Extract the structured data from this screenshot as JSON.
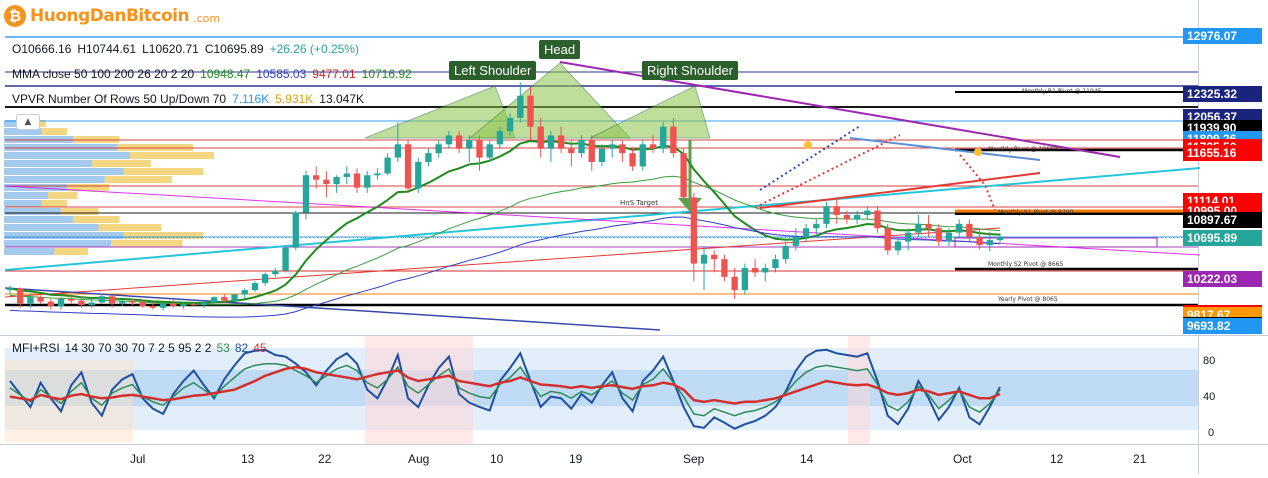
{
  "logo": {
    "text": "HuongDanBitcoin",
    "domain": ".com",
    "coin_symbol": "₿"
  },
  "ohlc": {
    "o": "O10666.16",
    "h": "H10744.61",
    "l": "L10620.71",
    "c": "C10695.89",
    "chg": "+26.26 (+0.25%)",
    "chg_color": "#26a69a"
  },
  "mma": {
    "label": "MMA close 50 100 200 26 20 2 20",
    "v1": "10948.47",
    "v2": "10585.03",
    "v3": "9477.01",
    "v4": "10716.92",
    "colors": [
      "#1f8b1f",
      "#2f3fc5",
      "#d01f1f",
      "#1f8b1f"
    ]
  },
  "vpvr": {
    "label": "VPVR Number Of Rows 50 Up/Down 70",
    "v1": "7.116K",
    "v2": "5.931K",
    "v3": "13.047K",
    "colors": [
      "#2196f3",
      "#f2b90f",
      "#131722"
    ]
  },
  "annotations": {
    "head": "Head",
    "left_shoulder": "Left Shoulder",
    "right_shoulder": "Right Shoulder",
    "hns_target": "HnS Target",
    "monthly_r1": "Monthly R1 Pivot @ 11945",
    "monthly_pivot": "Monthly Pivot @ 10660",
    "monthly_s1": "Monthly S1 Pivot @ 9700",
    "monthly_s2": "Monthly S2 Pivot @ 8665",
    "yearly_pivot": "Yearly Pivot @ 8065"
  },
  "price_labels": [
    {
      "text": "12976.07",
      "bg": "#2196f3",
      "price": 12976.07
    },
    {
      "text": "12325.32",
      "bg": "#1a237e",
      "price": 12325.32
    },
    {
      "text": "12056.37",
      "bg": "#1a237e",
      "price": 12056.37
    },
    {
      "text": "11939.90",
      "bg": "#000000",
      "price": 11939.9
    },
    {
      "text": "11809.26",
      "bg": "#2196f3",
      "price": 11809.26
    },
    {
      "text": "11725.50",
      "bg": "#ff0000",
      "price": 11725.5
    },
    {
      "text": "11655.16",
      "bg": "#ff0000",
      "price": 11655.16
    },
    {
      "text": "11114.01",
      "bg": "#ff0000",
      "price": 11114.01
    },
    {
      "text": "10995.00",
      "bg": "#ff0000",
      "price": 10995.0
    },
    {
      "text": "10897.67",
      "bg": "#000000",
      "price": 10897.67
    },
    {
      "text": "10695.89",
      "bg": "#26a69a",
      "price": 10695.89
    },
    {
      "text": "10222.03",
      "bg": "#9c27b0",
      "price": 10222.03
    },
    {
      "text": "9836.10",
      "bg": "#ff0000",
      "price": 9836.1
    },
    {
      "text": "9817.67",
      "bg": "#ff9800",
      "price": 9817.67
    },
    {
      "text": "9700.47",
      "bg": "#000000",
      "price": 9700.47
    },
    {
      "text": "9693.82",
      "bg": "#2196f3",
      "price": 9693.82
    }
  ],
  "indicator": {
    "label": "MFI+RSI",
    "params": "14 30 70 30 70 7 2 5 95 2 2",
    "v1": "53",
    "v2": "82",
    "v3": "45",
    "colors": [
      "#2e8b57",
      "#1f4fa0",
      "#d32f2f"
    ]
  },
  "rsi_ticks": [
    "80",
    "40",
    "0"
  ],
  "x_axis": [
    "Jul",
    "13",
    "22",
    "Aug",
    "10",
    "19",
    "Sep",
    "14",
    "Oct",
    "12",
    "21"
  ],
  "chart_data": {
    "type": "candlestick",
    "symbol_ohlc_last": {
      "open": 10666.16,
      "high": 10744.61,
      "low": 10620.71,
      "close": 10695.89
    },
    "y_range_approx": [
      9300,
      13050
    ],
    "x_range": [
      "2020-06-27",
      "2020-10-26"
    ],
    "candles_daily_approx": [
      [
        10100,
        10150,
        10050,
        10120
      ],
      [
        10120,
        10130,
        9900,
        9950
      ],
      [
        9950,
        10050,
        9900,
        10020
      ],
      [
        10020,
        10040,
        9950,
        9970
      ],
      [
        9970,
        10000,
        9880,
        9920
      ],
      [
        9920,
        10020,
        9880,
        10000
      ],
      [
        10000,
        10050,
        9950,
        9980
      ],
      [
        9980,
        10020,
        9900,
        9930
      ],
      [
        9930,
        10000,
        9900,
        9960
      ],
      [
        9960,
        10050,
        9950,
        10030
      ],
      [
        10030,
        10040,
        9900,
        9950
      ],
      [
        9950,
        9990,
        9920,
        9970
      ],
      [
        9970,
        10000,
        9930,
        9960
      ],
      [
        9960,
        9990,
        9900,
        9920
      ],
      [
        9920,
        9950,
        9880,
        9900
      ],
      [
        9900,
        9960,
        9870,
        9950
      ],
      [
        9950,
        9990,
        9900,
        9920
      ],
      [
        9920,
        9960,
        9890,
        9940
      ],
      [
        9940,
        9970,
        9910,
        9930
      ],
      [
        9930,
        9980,
        9900,
        9960
      ],
      [
        9960,
        10030,
        9950,
        10020
      ],
      [
        10020,
        10050,
        9960,
        9980
      ],
      [
        9980,
        10060,
        9970,
        10050
      ],
      [
        10050,
        10120,
        10000,
        10100
      ],
      [
        10100,
        10200,
        10080,
        10180
      ],
      [
        10180,
        10300,
        10150,
        10280
      ],
      [
        10280,
        10350,
        10250,
        10320
      ],
      [
        10320,
        10600,
        10300,
        10580
      ],
      [
        10580,
        11000,
        10550,
        10980
      ],
      [
        10980,
        11450,
        10900,
        11400
      ],
      [
        11400,
        11500,
        11250,
        11350
      ],
      [
        11350,
        11450,
        11150,
        11300
      ],
      [
        11300,
        11400,
        11200,
        11380
      ],
      [
        11380,
        11500,
        11300,
        11420
      ],
      [
        11420,
        11480,
        11200,
        11260
      ],
      [
        11260,
        11450,
        11200,
        11400
      ],
      [
        11400,
        11480,
        11350,
        11420
      ],
      [
        11420,
        11650,
        11400,
        11600
      ],
      [
        11600,
        12000,
        11550,
        11750
      ],
      [
        11750,
        11800,
        11200,
        11250
      ],
      [
        11250,
        11600,
        11200,
        11550
      ],
      [
        11550,
        11700,
        11500,
        11650
      ],
      [
        11650,
        11800,
        11600,
        11750
      ],
      [
        11750,
        11900,
        11700,
        11850
      ],
      [
        11850,
        11900,
        11650,
        11700
      ],
      [
        11700,
        11850,
        11550,
        11800
      ],
      [
        11800,
        11850,
        11450,
        11600
      ],
      [
        11600,
        11800,
        11550,
        11750
      ],
      [
        11750,
        11950,
        11700,
        11900
      ],
      [
        11900,
        12100,
        11850,
        12050
      ],
      [
        12050,
        12450,
        12000,
        12300
      ],
      [
        12300,
        12400,
        11800,
        11950
      ],
      [
        11950,
        12050,
        11600,
        11700
      ],
      [
        11700,
        11900,
        11550,
        11850
      ],
      [
        11850,
        11950,
        11650,
        11700
      ],
      [
        11700,
        11800,
        11500,
        11650
      ],
      [
        11650,
        11850,
        11600,
        11800
      ],
      [
        11800,
        11850,
        11450,
        11550
      ],
      [
        11550,
        11750,
        11500,
        11700
      ],
      [
        11700,
        11800,
        11600,
        11750
      ],
      [
        11750,
        11800,
        11550,
        11650
      ],
      [
        11650,
        11720,
        11450,
        11500
      ],
      [
        11500,
        11800,
        11450,
        11750
      ],
      [
        11750,
        11850,
        11650,
        11700
      ],
      [
        11700,
        12000,
        11650,
        11950
      ],
      [
        11950,
        12050,
        11600,
        11650
      ],
      [
        11650,
        11700,
        11100,
        11150
      ],
      [
        11150,
        11200,
        10200,
        10400
      ],
      [
        10400,
        10600,
        10100,
        10500
      ],
      [
        10500,
        10550,
        10300,
        10450
      ],
      [
        10450,
        10500,
        10200,
        10250
      ],
      [
        10250,
        10350,
        10000,
        10100
      ],
      [
        10100,
        10400,
        10050,
        10350
      ],
      [
        10350,
        10450,
        10250,
        10300
      ],
      [
        10300,
        10400,
        10200,
        10350
      ],
      [
        10350,
        10500,
        10300,
        10450
      ],
      [
        10450,
        10650,
        10400,
        10600
      ],
      [
        10600,
        10800,
        10550,
        10700
      ],
      [
        10700,
        10850,
        10650,
        10800
      ],
      [
        10800,
        10900,
        10700,
        10850
      ],
      [
        10850,
        11100,
        10800,
        11050
      ],
      [
        11050,
        11150,
        10850,
        10950
      ],
      [
        10950,
        11000,
        10850,
        10900
      ],
      [
        10900,
        11000,
        10850,
        10950
      ],
      [
        10950,
        11050,
        10900,
        11000
      ],
      [
        11000,
        11050,
        10750,
        10800
      ],
      [
        10800,
        10850,
        10500,
        10550
      ],
      [
        10550,
        10700,
        10500,
        10650
      ],
      [
        10650,
        10800,
        10550,
        10750
      ],
      [
        10750,
        10950,
        10700,
        10850
      ],
      [
        10850,
        10950,
        10700,
        10800
      ],
      [
        10800,
        10850,
        10600,
        10650
      ],
      [
        10650,
        10800,
        10600,
        10750
      ],
      [
        10750,
        10900,
        10700,
        10850
      ],
      [
        10850,
        10900,
        10650,
        10700
      ],
      [
        10700,
        10780,
        10560,
        10610
      ],
      [
        10610,
        10760,
        10540,
        10666
      ],
      [
        10666.16,
        10744.61,
        10620.71,
        10695.89
      ]
    ],
    "rsi_series_approx": [
      42,
      40,
      38,
      44,
      41,
      39,
      43,
      45,
      42,
      40,
      41,
      43,
      44,
      42,
      40,
      38,
      39,
      41,
      43,
      44,
      46,
      48,
      50,
      55,
      60,
      66,
      70,
      74,
      76,
      74,
      70,
      68,
      66,
      64,
      62,
      65,
      68,
      70,
      72,
      64,
      60,
      62,
      64,
      66,
      60,
      58,
      56,
      54,
      58,
      60,
      64,
      60,
      56,
      55,
      54,
      52,
      54,
      52,
      54,
      55,
      53,
      51,
      54,
      55,
      58,
      56,
      50,
      38,
      36,
      38,
      36,
      34,
      36,
      36,
      38,
      40,
      44,
      48,
      52,
      56,
      60,
      58,
      56,
      55,
      56,
      52,
      46,
      44,
      46,
      50,
      48,
      44,
      46,
      48,
      44,
      40,
      40,
      45
    ],
    "mfi_series_approx": [
      60,
      45,
      30,
      58,
      40,
      25,
      55,
      70,
      35,
      20,
      50,
      62,
      68,
      40,
      28,
      22,
      45,
      60,
      72,
      55,
      40,
      62,
      78,
      92,
      95,
      96,
      90,
      88,
      80,
      70,
      55,
      72,
      85,
      92,
      80,
      50,
      40,
      62,
      90,
      40,
      30,
      55,
      75,
      88,
      45,
      35,
      30,
      26,
      60,
      75,
      92,
      60,
      30,
      42,
      40,
      28,
      45,
      35,
      55,
      70,
      40,
      25,
      60,
      72,
      88,
      60,
      30,
      8,
      6,
      18,
      12,
      5,
      10,
      14,
      20,
      30,
      48,
      72,
      88,
      95,
      96,
      92,
      90,
      88,
      92,
      60,
      20,
      10,
      28,
      60,
      40,
      15,
      30,
      52,
      18,
      10,
      30,
      53
    ],
    "mfi_rsi_blend_approx": [
      52,
      44,
      36,
      50,
      42,
      34,
      48,
      58,
      40,
      32,
      46,
      52,
      56,
      42,
      36,
      32,
      42,
      52,
      58,
      50,
      42,
      54,
      64,
      74,
      78,
      80,
      80,
      78,
      72,
      66,
      58,
      66,
      74,
      78,
      72,
      58,
      52,
      62,
      76,
      54,
      46,
      56,
      66,
      74,
      52,
      46,
      42,
      40,
      56,
      64,
      76,
      58,
      42,
      48,
      46,
      40,
      48,
      44,
      52,
      60,
      46,
      38,
      56,
      62,
      74,
      58,
      42,
      22,
      20,
      28,
      24,
      20,
      24,
      26,
      30,
      36,
      46,
      60,
      70,
      76,
      78,
      76,
      74,
      72,
      74,
      56,
      32,
      26,
      36,
      54,
      44,
      28,
      38,
      50,
      30,
      24,
      34,
      50
    ]
  }
}
